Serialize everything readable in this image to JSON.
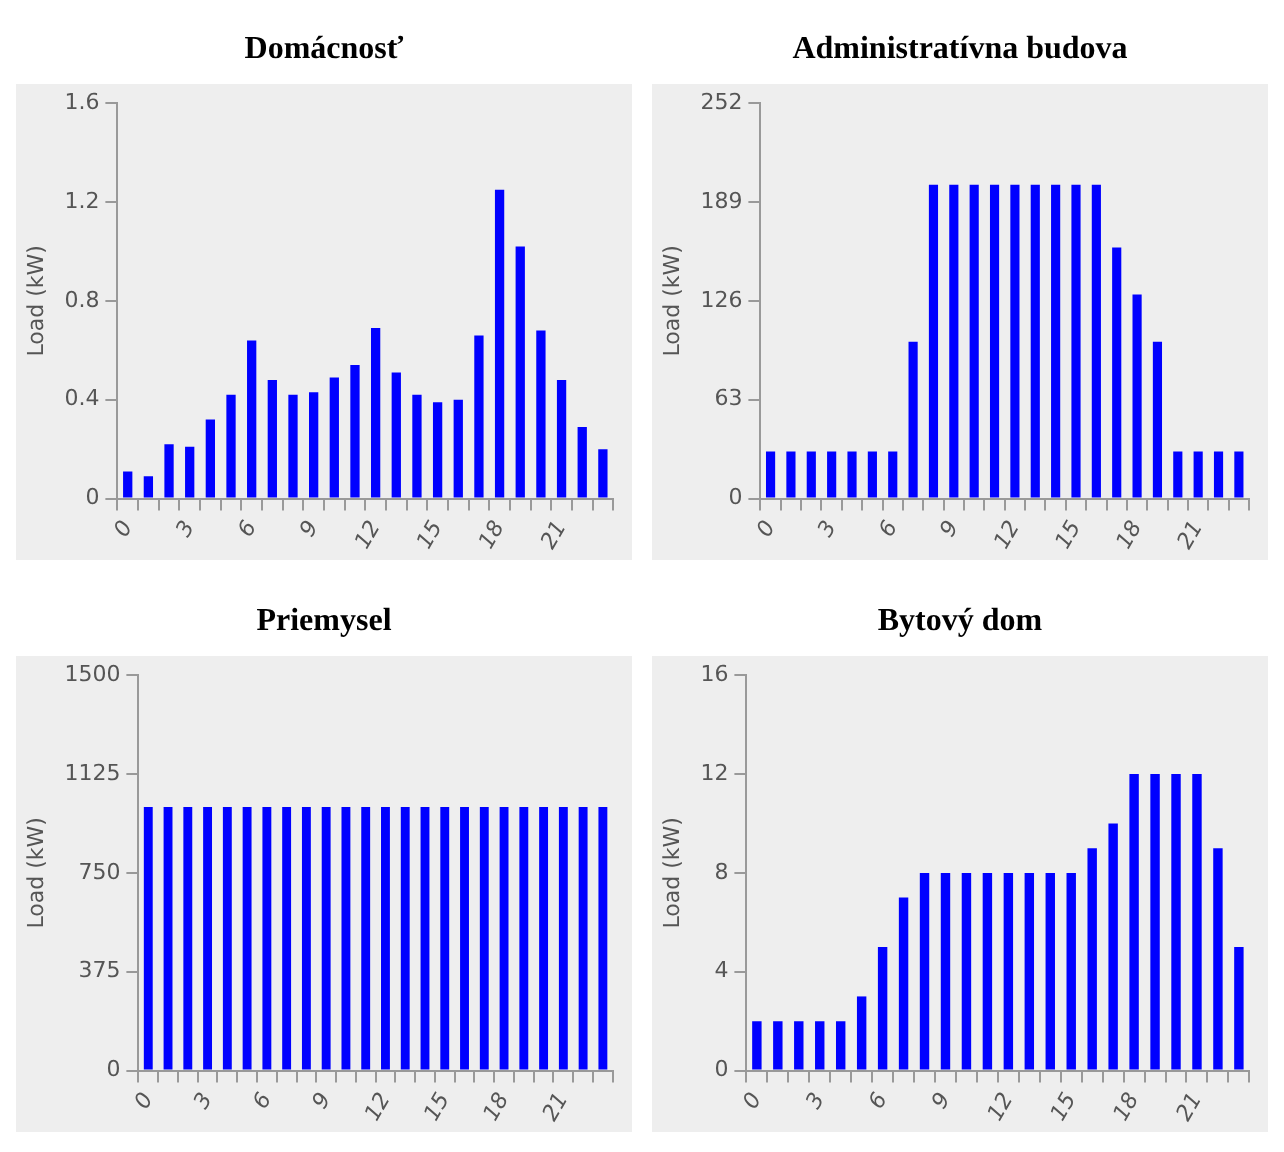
{
  "chart_data": [
    {
      "type": "bar",
      "title": "Domácnosť",
      "ylabel": "Load (kW)",
      "categories": [
        "0",
        null,
        null,
        "3",
        null,
        null,
        "6",
        null,
        null,
        "9",
        null,
        null,
        "12",
        null,
        null,
        "15",
        null,
        null,
        "18",
        null,
        null,
        "21",
        null,
        null
      ],
      "values": [
        0.11,
        0.09,
        0.22,
        0.21,
        0.32,
        0.42,
        0.64,
        0.48,
        0.42,
        0.43,
        0.49,
        0.54,
        0.69,
        0.51,
        0.42,
        0.39,
        0.4,
        0.66,
        1.25,
        1.02,
        0.68,
        0.48,
        0.29,
        0.2
      ],
      "color": "#0000ff",
      "ylim": [
        0,
        1.6
      ],
      "yticks": [
        0,
        0.4,
        0.8,
        1.2,
        1.6
      ],
      "grid": false,
      "legend": false
    },
    {
      "type": "bar",
      "title": "Administratívna budova",
      "ylabel": "Load (kW)",
      "categories": [
        "0",
        null,
        null,
        "3",
        null,
        null,
        "6",
        null,
        null,
        "9",
        null,
        null,
        "12",
        null,
        null,
        "15",
        null,
        null,
        "18",
        null,
        null,
        "21",
        null,
        null
      ],
      "values": [
        30,
        30,
        30,
        30,
        30,
        30,
        30,
        100,
        200,
        200,
        200,
        200,
        200,
        200,
        200,
        200,
        200,
        160,
        130,
        100,
        30,
        30,
        30,
        30
      ],
      "color": "#0000ff",
      "ylim": [
        0,
        252
      ],
      "yticks": [
        0,
        63,
        126,
        189,
        252
      ],
      "grid": false,
      "legend": false
    },
    {
      "type": "bar",
      "title": "Priemysel",
      "ylabel": "Load (kW)",
      "categories": [
        "0",
        null,
        null,
        "3",
        null,
        null,
        "6",
        null,
        null,
        "9",
        null,
        null,
        "12",
        null,
        null,
        "15",
        null,
        null,
        "18",
        null,
        null,
        "21",
        null,
        null
      ],
      "values": [
        1000,
        1000,
        1000,
        1000,
        1000,
        1000,
        1000,
        1000,
        1000,
        1000,
        1000,
        1000,
        1000,
        1000,
        1000,
        1000,
        1000,
        1000,
        1000,
        1000,
        1000,
        1000,
        1000,
        1000
      ],
      "color": "#0000ff",
      "ylim": [
        0,
        1500
      ],
      "yticks": [
        0,
        375,
        750,
        1125,
        1500
      ],
      "grid": false,
      "legend": false
    },
    {
      "type": "bar",
      "title": "Bytový dom",
      "ylabel": "Load (kW)",
      "categories": [
        "0",
        null,
        null,
        "3",
        null,
        null,
        "6",
        null,
        null,
        "9",
        null,
        null,
        "12",
        null,
        null,
        "15",
        null,
        null,
        "18",
        null,
        null,
        "21",
        null,
        null
      ],
      "values": [
        2,
        2,
        2,
        2,
        2,
        3,
        5,
        7,
        8,
        8,
        8,
        8,
        8,
        8,
        8,
        8,
        9,
        10,
        12,
        12,
        12,
        12,
        9,
        5
      ],
      "color": "#0000ff",
      "ylim": [
        0,
        16
      ],
      "yticks": [
        0,
        4,
        8,
        12,
        16
      ],
      "grid": false,
      "legend": false
    }
  ]
}
